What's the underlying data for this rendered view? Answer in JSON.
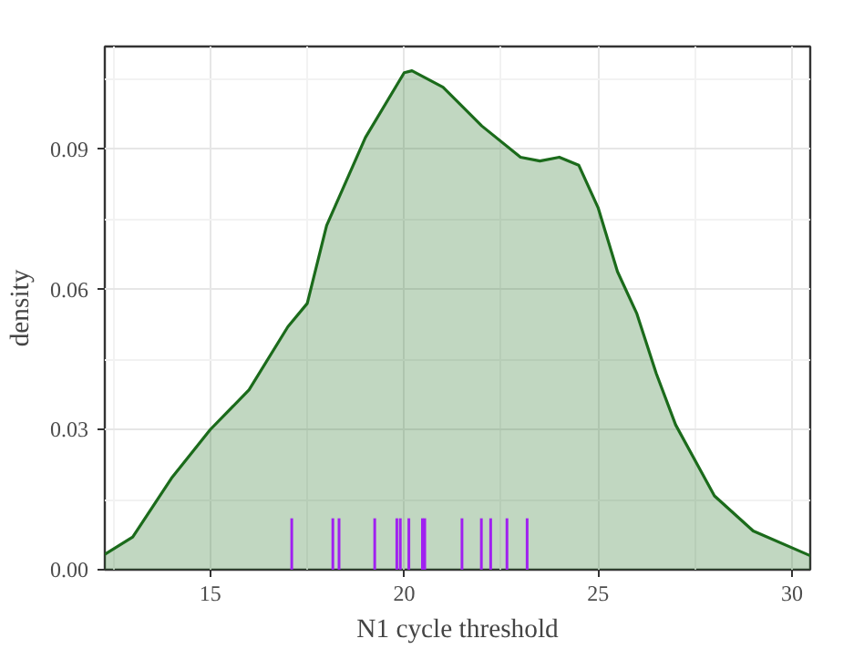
{
  "chart_data": {
    "type": "area",
    "xlabel": "N1 cycle threshold",
    "ylabel": "density",
    "series": [
      {
        "color": "#1b6b1b",
        "x": [
          12.28,
          13,
          14,
          15,
          16,
          17,
          17.5,
          18,
          19,
          20,
          20.2,
          21,
          22,
          23,
          23.5,
          24,
          24.5,
          25,
          25.5,
          26,
          26.5,
          27,
          28,
          29,
          30.47
        ],
        "values": [
          0.0033,
          0.007,
          0.0196,
          0.03,
          0.0385,
          0.052,
          0.057,
          0.0737,
          0.0925,
          0.1064,
          0.1068,
          0.1033,
          0.095,
          0.0883,
          0.0875,
          0.0883,
          0.0866,
          0.0775,
          0.0638,
          0.0548,
          0.042,
          0.031,
          0.0158,
          0.0083,
          0.003
        ]
      },
      {
        "type": "bar",
        "color": "#a020f0",
        "x": [
          17.1,
          18.16,
          18.32,
          19.24,
          19.81,
          19.9,
          20.12,
          20.47,
          20.53,
          21.49,
          21.99,
          22.23,
          22.65,
          23.17
        ],
        "values": [
          0.011,
          0.011,
          0.011,
          0.011,
          0.011,
          0.011,
          0.011,
          0.011,
          0.011,
          0.011,
          0.011,
          0.011,
          0.011,
          0.011
        ]
      }
    ],
    "xlim": [
      12.28,
      30.47
    ],
    "ylim": [
      0,
      0.112
    ],
    "xticks": [
      15,
      20,
      25,
      30
    ],
    "yticks": [
      {
        "value": 0,
        "label": "0.00"
      },
      {
        "value": 0.03,
        "label": "0.03"
      },
      {
        "value": 0.06,
        "label": "0.06"
      },
      {
        "value": 0.09,
        "label": "0.09"
      }
    ],
    "grid": true
  }
}
